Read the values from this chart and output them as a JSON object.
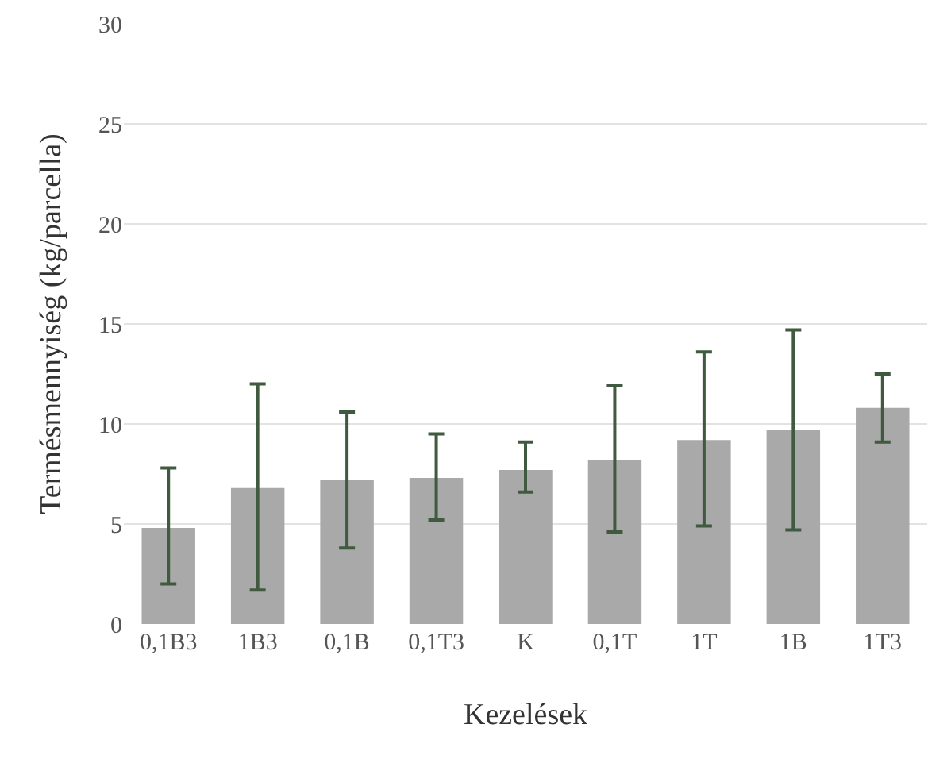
{
  "chart_data": {
    "type": "bar",
    "xlabel": "Kezelések",
    "ylabel": "Termésmennyiség (kg/parcella)",
    "categories": [
      "0,1B3",
      "1B3",
      "0,1B",
      "0,1T3",
      "K",
      "0,1T",
      "1T",
      "1B",
      "1T3"
    ],
    "values": [
      4.8,
      6.8,
      7.2,
      7.3,
      7.7,
      8.2,
      9.2,
      9.7,
      10.8
    ],
    "errors": [
      [
        2.0,
        7.8
      ],
      [
        1.7,
        12.0
      ],
      [
        3.8,
        10.6
      ],
      [
        5.2,
        9.5
      ],
      [
        6.6,
        9.1
      ],
      [
        4.6,
        11.9
      ],
      [
        4.9,
        13.6
      ],
      [
        4.7,
        14.7
      ],
      [
        9.1,
        12.5
      ]
    ],
    "color": "#a9a9a9",
    "ylim": [
      0,
      30
    ],
    "yticks": [
      0,
      5,
      10,
      15,
      20,
      25,
      30
    ],
    "grid": "y"
  }
}
